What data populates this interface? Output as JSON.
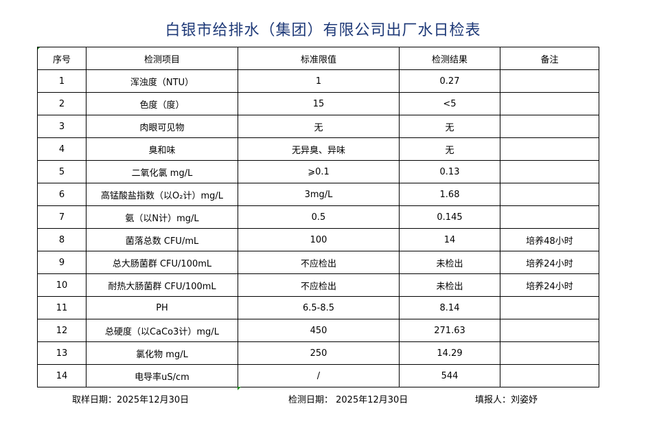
{
  "title": "白银市给排水（集团）有限公司出厂水日检表",
  "headers": [
    "序号",
    "检测项目",
    "标准限值",
    "检测结果",
    "备注"
  ],
  "rows": [
    [
      "1",
      "浑浊度（NTU）",
      "1",
      "0.27",
      ""
    ],
    [
      "2",
      "色度（度）",
      "15",
      "<5",
      ""
    ],
    [
      "3",
      "肉眼可见物",
      "无",
      "无",
      ""
    ],
    [
      "4",
      "臭和味",
      "无异臭、异味",
      "无",
      ""
    ],
    [
      "5",
      "二氧化氯 mg/L",
      "⩾0.1",
      "0.13",
      ""
    ],
    [
      "6",
      "高锰酸盐指数（以O₂计）mg/L",
      "3mg/L",
      "1.68",
      ""
    ],
    [
      "7",
      "氨（以N计）mg/L",
      "0.5",
      "0.145",
      ""
    ],
    [
      "8",
      "菌落总数 CFU/mL",
      "100",
      "14",
      "培养48小时"
    ],
    [
      "9",
      "总大肠菌群 CFU/100mL",
      "不应检出",
      "未检出",
      "培养24小时"
    ],
    [
      "10",
      "耐热大肠菌群 CFU/100mL",
      "不应检出",
      "未检出",
      "培养24小时"
    ],
    [
      "11",
      "PH",
      "6.5-8.5",
      "8.14",
      ""
    ],
    [
      "12",
      "总硬度（以CaCo3计）mg/L",
      "450",
      "271.63",
      ""
    ],
    [
      "13",
      "氯化物 mg/L",
      "250",
      "14.29",
      ""
    ],
    [
      "14",
      "电导率uS/cm",
      "/",
      "544",
      ""
    ]
  ],
  "footer": {
    "sample_date": "取样日期：2025年12月30日",
    "test_date": "检测日期： 2025年12月30日",
    "reporter": "填报人：刘姿妤"
  }
}
